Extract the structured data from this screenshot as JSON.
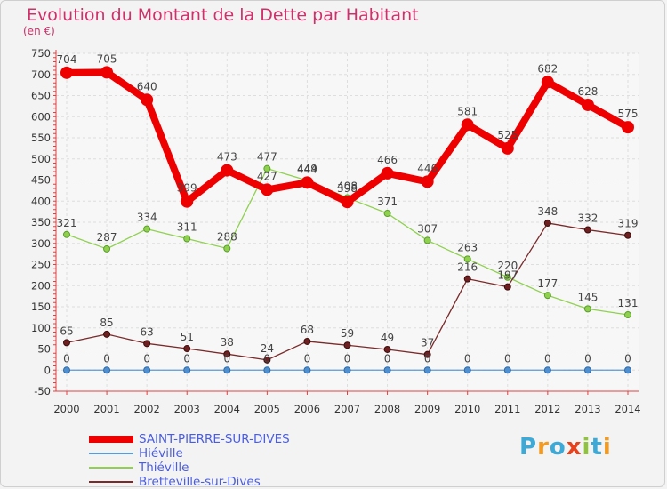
{
  "header": {
    "title": "Evolution du Montant de la Dette par Habitant",
    "unit": "(en €)"
  },
  "logo": {
    "text": "Proxiti",
    "colors": [
      "#3da9d6",
      "#f39a1f",
      "#3da9d6",
      "#e8421c",
      "#8fc43a",
      "#3da9d6",
      "#f39a1f"
    ]
  },
  "chart_data": {
    "type": "line",
    "title": "Evolution du Montant de la Dette par Habitant",
    "ylabel": "(en €)",
    "xlabel": "",
    "x": [
      "2000",
      "2001",
      "2002",
      "2003",
      "2004",
      "2005",
      "2006",
      "2007",
      "2008",
      "2009",
      "2010",
      "2011",
      "2012",
      "2013",
      "2014"
    ],
    "ylim": [
      -50,
      750
    ],
    "yticks": [
      -50,
      0,
      50,
      100,
      150,
      200,
      250,
      300,
      350,
      400,
      450,
      500,
      550,
      600,
      650,
      700,
      750
    ],
    "grid": true,
    "legend_position": "bottom-left",
    "series": [
      {
        "name": "SAINT-PIERRE-SUR-DIVES",
        "color": "#ee0000",
        "values": [
          704,
          705,
          640,
          399,
          473,
          427,
          444,
          398,
          466,
          446,
          581,
          525,
          682,
          628,
          575
        ],
        "labels": [
          "704",
          "705",
          "640",
          "399",
          "473",
          "427",
          "444",
          "398",
          "466",
          "446",
          "581",
          "525",
          "682",
          "628",
          "575"
        ]
      },
      {
        "name": "Hiéville",
        "color": "#5b9bd5",
        "values": [
          0,
          0,
          0,
          0,
          0,
          0,
          0,
          0,
          0,
          0,
          0,
          0,
          0,
          0,
          0
        ],
        "labels": [
          "0",
          "0",
          "0",
          "0",
          "0",
          "0",
          "0",
          "0",
          "0",
          "0",
          "0",
          "0",
          "0",
          "0",
          "0"
        ]
      },
      {
        "name": "Thiéville",
        "color": "#8fd14f",
        "values": [
          321,
          287,
          334,
          311,
          288,
          477,
          449,
          408,
          371,
          307,
          263,
          220,
          177,
          145,
          131
        ],
        "labels": [
          "321",
          "287",
          "334",
          "311",
          "288",
          "477",
          "449",
          "408",
          "371",
          "307",
          "263",
          "220",
          "177",
          "145",
          "131"
        ]
      },
      {
        "name": "Bretteville-sur-Dives",
        "color": "#7a2a2a",
        "values": [
          65,
          85,
          63,
          51,
          38,
          24,
          68,
          59,
          49,
          37,
          216,
          197,
          348,
          332,
          319
        ],
        "labels": [
          "65",
          "85",
          "63",
          "51",
          "38",
          "24",
          "68",
          "59",
          "49",
          "37",
          "216",
          "197",
          "348",
          "332",
          "319"
        ]
      }
    ]
  }
}
